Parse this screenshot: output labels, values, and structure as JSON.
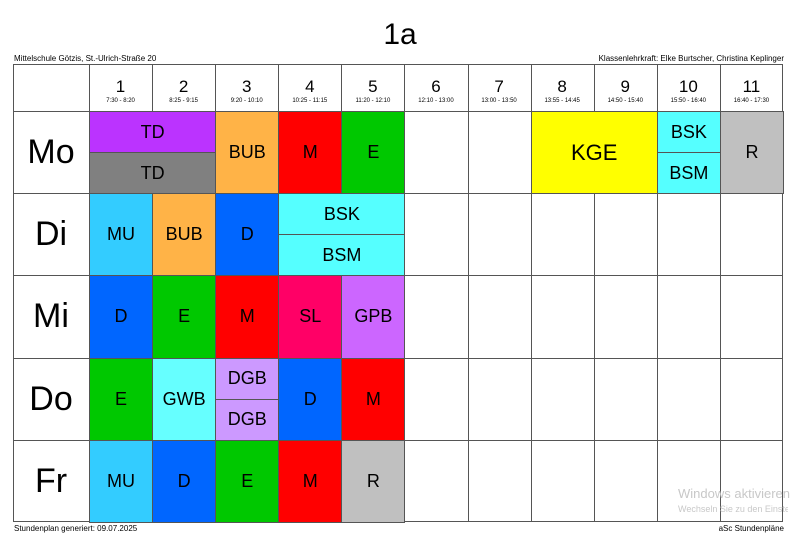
{
  "title": "1a",
  "school": "Mittelschule Götzis, St.-Ulrich-Straße 20",
  "teachers": "Klassenlehrkraft: Elke Burtscher, Christina Keplinger",
  "footer_left": "Stundenplan generiert: 09.07.2025",
  "footer_right": "aSc Stundenpläne",
  "watermark": {
    "line1": "Windows aktivieren",
    "line2": "Wechseln Sie zu den Einstellungen, um Windows zu aktivieren."
  },
  "periods": [
    {
      "num": "1",
      "time": "7:30 - 8:20"
    },
    {
      "num": "2",
      "time": "8:25 - 9:15"
    },
    {
      "num": "3",
      "time": "9:20 - 10:10"
    },
    {
      "num": "4",
      "time": "10:25 - 11:15"
    },
    {
      "num": "5",
      "time": "11:20 - 12:10"
    },
    {
      "num": "6",
      "time": "12:10 - 13:00"
    },
    {
      "num": "7",
      "time": "13:00 - 13:50"
    },
    {
      "num": "8",
      "time": "13:55 - 14:45"
    },
    {
      "num": "9",
      "time": "14:50 - 15:40"
    },
    {
      "num": "10",
      "time": "15:50 - 16:40"
    },
    {
      "num": "11",
      "time": "16:40 - 17:30"
    }
  ],
  "days": [
    "Mo",
    "Di",
    "Mi",
    "Do",
    "Fr"
  ],
  "colors": {
    "TD_purple": "#bb33ff",
    "TD_gray": "#808080",
    "BUB": "#ffb347",
    "M": "#ff0000",
    "E": "#00c800",
    "KGE": "#ffff00",
    "BSK": "#55ffff",
    "R": "#c0c0c0",
    "MU": "#33ccff",
    "D": "#0066ff",
    "SL": "#ff0066",
    "GPB": "#cc66ff",
    "GWB": "#66ffff",
    "DGB": "#cc99ff"
  },
  "lessons": [
    {
      "day": 0,
      "p": 0,
      "span": 2,
      "half": "top",
      "label": "TD",
      "color": "#bb33ff"
    },
    {
      "day": 0,
      "p": 0,
      "span": 2,
      "half": "bottom",
      "label": "TD",
      "color": "#808080"
    },
    {
      "day": 0,
      "p": 2,
      "span": 1,
      "half": "full",
      "label": "BUB",
      "color": "#ffb347"
    },
    {
      "day": 0,
      "p": 3,
      "span": 1,
      "half": "full",
      "label": "M",
      "color": "#ff0000"
    },
    {
      "day": 0,
      "p": 4,
      "span": 1,
      "half": "full",
      "label": "E",
      "color": "#00c800"
    },
    {
      "day": 0,
      "p": 7,
      "span": 2,
      "half": "full",
      "label": "KGE",
      "color": "#ffff00",
      "big": true
    },
    {
      "day": 0,
      "p": 9,
      "span": 1,
      "half": "top",
      "label": "BSK",
      "color": "#55ffff"
    },
    {
      "day": 0,
      "p": 9,
      "span": 1,
      "half": "bottom",
      "label": "BSM",
      "color": "#55ffff"
    },
    {
      "day": 0,
      "p": 10,
      "span": 1,
      "half": "full",
      "label": "R",
      "color": "#c0c0c0"
    },
    {
      "day": 1,
      "p": 0,
      "span": 1,
      "half": "full",
      "label": "MU",
      "color": "#33ccff"
    },
    {
      "day": 1,
      "p": 1,
      "span": 1,
      "half": "full",
      "label": "BUB",
      "color": "#ffb347"
    },
    {
      "day": 1,
      "p": 2,
      "span": 1,
      "half": "full",
      "label": "D",
      "color": "#0066ff"
    },
    {
      "day": 1,
      "p": 3,
      "span": 2,
      "half": "top",
      "label": "BSK",
      "color": "#55ffff"
    },
    {
      "day": 1,
      "p": 3,
      "span": 2,
      "half": "bottom",
      "label": "BSM",
      "color": "#55ffff"
    },
    {
      "day": 2,
      "p": 0,
      "span": 1,
      "half": "full",
      "label": "D",
      "color": "#0066ff"
    },
    {
      "day": 2,
      "p": 1,
      "span": 1,
      "half": "full",
      "label": "E",
      "color": "#00c800"
    },
    {
      "day": 2,
      "p": 2,
      "span": 1,
      "half": "full",
      "label": "M",
      "color": "#ff0000"
    },
    {
      "day": 2,
      "p": 3,
      "span": 1,
      "half": "full",
      "label": "SL",
      "color": "#ff0066"
    },
    {
      "day": 2,
      "p": 4,
      "span": 1,
      "half": "full",
      "label": "GPB",
      "color": "#cc66ff"
    },
    {
      "day": 3,
      "p": 0,
      "span": 1,
      "half": "full",
      "label": "E",
      "color": "#00c800"
    },
    {
      "day": 3,
      "p": 1,
      "span": 1,
      "half": "full",
      "label": "GWB",
      "color": "#66ffff"
    },
    {
      "day": 3,
      "p": 2,
      "span": 1,
      "half": "top",
      "label": "DGB",
      "color": "#cc99ff"
    },
    {
      "day": 3,
      "p": 2,
      "span": 1,
      "half": "bottom",
      "label": "DGB",
      "color": "#cc99ff"
    },
    {
      "day": 3,
      "p": 3,
      "span": 1,
      "half": "full",
      "label": "D",
      "color": "#0066ff"
    },
    {
      "day": 3,
      "p": 4,
      "span": 1,
      "half": "full",
      "label": "M",
      "color": "#ff0000"
    },
    {
      "day": 4,
      "p": 0,
      "span": 1,
      "half": "full",
      "label": "MU",
      "color": "#33ccff"
    },
    {
      "day": 4,
      "p": 1,
      "span": 1,
      "half": "full",
      "label": "D",
      "color": "#0066ff"
    },
    {
      "day": 4,
      "p": 2,
      "span": 1,
      "half": "full",
      "label": "E",
      "color": "#00c800"
    },
    {
      "day": 4,
      "p": 3,
      "span": 1,
      "half": "full",
      "label": "M",
      "color": "#ff0000"
    },
    {
      "day": 4,
      "p": 4,
      "span": 1,
      "half": "full",
      "label": "R",
      "color": "#c0c0c0"
    }
  ]
}
